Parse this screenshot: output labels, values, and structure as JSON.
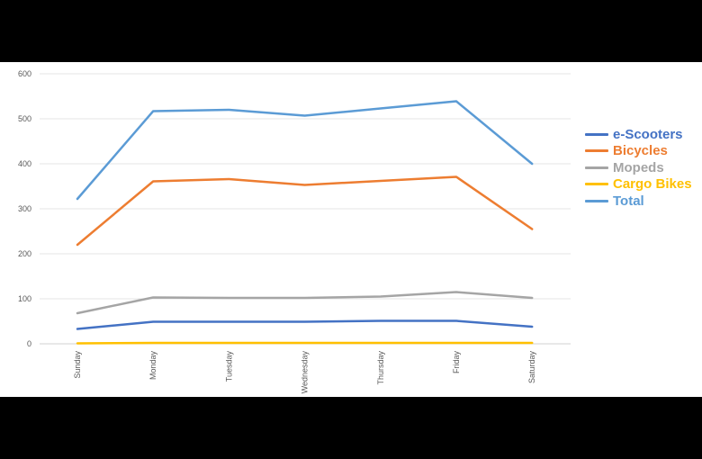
{
  "chart_data": {
    "type": "line",
    "categories": [
      "Sunday",
      "Monday",
      "Tuesday",
      "Wednesday",
      "Thursday",
      "Friday",
      "Saturday"
    ],
    "ylim": [
      0,
      600
    ],
    "yticks": [
      "0",
      "100",
      "200",
      "300",
      "400",
      "500",
      "600"
    ],
    "grid": true,
    "legend_position": "right",
    "series": [
      {
        "name": "e-Scooters",
        "color": "#4472C4",
        "values": [
          33,
          49,
          49,
          49,
          51,
          51,
          38
        ]
      },
      {
        "name": "Bicycles",
        "color": "#ED7D31",
        "values": [
          220,
          361,
          366,
          353,
          362,
          371,
          255
        ]
      },
      {
        "name": "Mopeds",
        "color": "#A5A5A5",
        "values": [
          68,
          103,
          102,
          102,
          105,
          115,
          102
        ]
      },
      {
        "name": "Cargo Bikes",
        "color": "#FFC000",
        "values": [
          1,
          2,
          2,
          2,
          2,
          2,
          2
        ]
      },
      {
        "name": "Total",
        "color": "#5B9BD5",
        "values": [
          322,
          517,
          520,
          507,
          523,
          539,
          400
        ]
      }
    ]
  }
}
